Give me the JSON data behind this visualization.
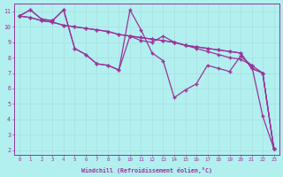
{
  "xlabel": "Windchill (Refroidissement éolien,°C)",
  "background_color": "#b2f0f0",
  "line_color": "#993399",
  "grid_color": "#aadddd",
  "xlim": [
    -0.5,
    23.5
  ],
  "ylim": [
    1.7,
    11.5
  ],
  "yticks": [
    2,
    3,
    4,
    5,
    6,
    7,
    8,
    9,
    10,
    11
  ],
  "xticks": [
    0,
    1,
    2,
    3,
    4,
    5,
    6,
    7,
    8,
    9,
    10,
    11,
    12,
    13,
    14,
    15,
    16,
    17,
    18,
    19,
    20,
    21,
    22,
    23
  ],
  "lines": [
    [
      10.7,
      11.1,
      10.5,
      10.4,
      11.1,
      8.6,
      8.2,
      7.6,
      7.5,
      7.2,
      9.4,
      9.1,
      9.0,
      9.4,
      9.0,
      8.8,
      8.6,
      8.4,
      8.2,
      8.0,
      7.9,
      7.5,
      7.0,
      2.1
    ],
    [
      10.7,
      11.1,
      10.5,
      10.4,
      11.1,
      8.6,
      8.2,
      7.6,
      7.5,
      7.2,
      11.1,
      9.8,
      8.3,
      7.8,
      5.4,
      5.9,
      6.3,
      7.5,
      7.3,
      7.1,
      8.1,
      7.5,
      4.2,
      2.1
    ],
    [
      10.7,
      10.6,
      10.4,
      10.3,
      10.1,
      10.0,
      9.9,
      9.8,
      9.7,
      9.5,
      9.4,
      9.3,
      9.2,
      9.1,
      9.0,
      8.8,
      8.7,
      8.6,
      8.5,
      8.4,
      8.3,
      7.3,
      7.0,
      2.1
    ],
    [
      10.7,
      10.6,
      10.4,
      10.3,
      10.1,
      10.0,
      9.9,
      9.8,
      9.7,
      9.5,
      9.4,
      9.3,
      9.2,
      9.1,
      9.0,
      8.8,
      8.7,
      8.6,
      8.5,
      8.4,
      8.3,
      7.3,
      7.0,
      2.1
    ]
  ]
}
